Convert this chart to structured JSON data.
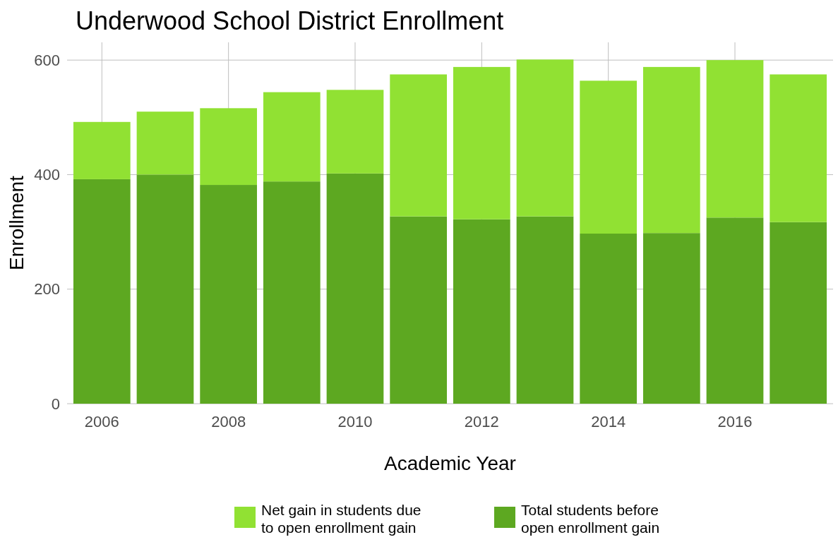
{
  "chart_data": {
    "type": "bar",
    "title": "Underwood School District Enrollment",
    "xlabel": "Academic Year",
    "ylabel": "Enrollment",
    "x": [
      2006,
      2007,
      2008,
      2009,
      2010,
      2011,
      2012,
      2013,
      2014,
      2015,
      2016,
      2017
    ],
    "xlim": [
      2005.45,
      2017.55
    ],
    "xticks": [
      2006,
      2008,
      2010,
      2012,
      2014,
      2016
    ],
    "ylim": [
      0,
      631
    ],
    "yticks": [
      0,
      200,
      400,
      600
    ],
    "stacked": true,
    "grid": true,
    "legend": "bottom",
    "series": [
      {
        "name": "Total students before open enrollment gain",
        "color": "#5da821",
        "values": [
          392,
          400,
          382,
          388,
          402,
          327,
          322,
          327,
          297,
          298,
          325,
          317
        ]
      },
      {
        "name": "Net gain in students due to open enrollment gain",
        "color": "#91e133",
        "values": [
          100,
          110,
          134,
          156,
          146,
          248,
          266,
          274,
          267,
          290,
          275,
          258
        ]
      }
    ]
  }
}
